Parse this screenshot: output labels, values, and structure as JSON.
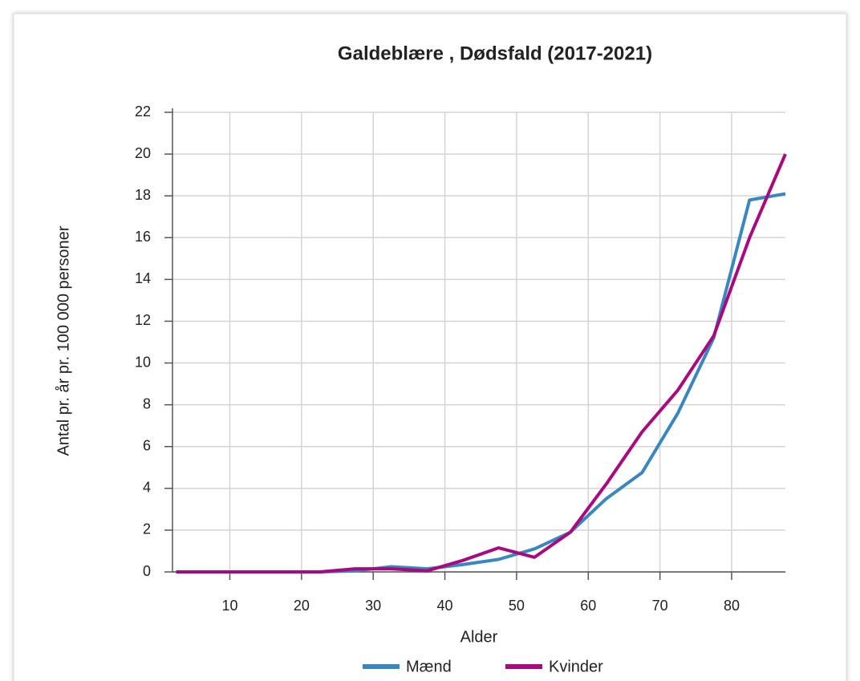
{
  "chart_data": {
    "type": "line",
    "title": "Galdeblære , Dødsfald (2017-2021)",
    "xlabel": "Alder",
    "ylabel": "Antal pr. år pr. 100 000 personer",
    "x": [
      2.5,
      7.5,
      12.5,
      17.5,
      22.5,
      27.5,
      32.5,
      37.5,
      42.5,
      47.5,
      52.5,
      57.5,
      62.5,
      67.5,
      72.5,
      77.5,
      82.5,
      87.5
    ],
    "series": [
      {
        "name": "Mænd",
        "color": "#3a87c0",
        "values": [
          0,
          0,
          0,
          0,
          0,
          0.05,
          0.25,
          0.15,
          0.35,
          0.6,
          1.1,
          1.9,
          3.5,
          4.75,
          7.6,
          11.2,
          17.8,
          18.1
        ]
      },
      {
        "name": "Kvinder",
        "color": "#a8097e",
        "values": [
          0,
          0,
          0,
          0,
          0,
          0.15,
          0.15,
          0.05,
          0.55,
          1.15,
          0.7,
          1.9,
          4.2,
          6.7,
          8.7,
          11.3,
          16.0,
          20.0
        ]
      }
    ],
    "xlim": [
      2,
      87.5
    ],
    "xticks": [
      10,
      20,
      30,
      40,
      50,
      60,
      70,
      80
    ],
    "ylim": [
      0,
      22
    ],
    "yticks": [
      0,
      2,
      4,
      6,
      8,
      10,
      12,
      14,
      16,
      18,
      20,
      22
    ],
    "grid": true,
    "legend": "bottom"
  }
}
